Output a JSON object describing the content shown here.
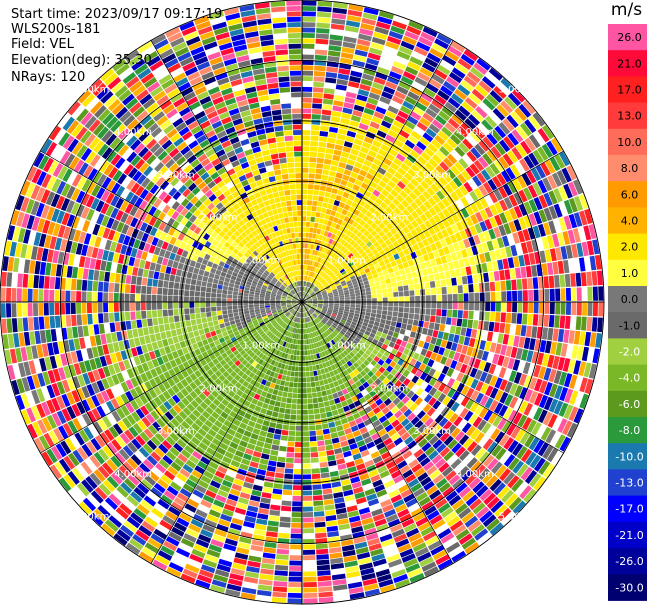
{
  "header": {
    "start_time": "Start time: 2023/09/17 09:17:19",
    "instrument": "WLS200s-181",
    "field": "Field: VEL",
    "elevation": "Elevation(deg): 35.30",
    "nrays": "NRays: 120"
  },
  "colorbar": {
    "unit": "m/s",
    "labels": [
      "26.0",
      "21.0",
      "17.0",
      "13.0",
      "10.0",
      "8.0",
      "6.0",
      "4.0",
      "2.0",
      "1.0",
      "0.0",
      "-1.0",
      "-2.0",
      "-4.0",
      "-6.0",
      "-8.0",
      "-10.0",
      "-13.0",
      "-17.0",
      "-21.0",
      "-26.0",
      "-30.0"
    ],
    "colors": [
      "#ff55a3",
      "#ff0a39",
      "#ff2020",
      "#ff3b3b",
      "#ff6d5a",
      "#ff8c6c",
      "#ff9a00",
      "#ffb300",
      "#ffe800",
      "#ffff40",
      "#787878",
      "#6a6a6a",
      "#a0d040",
      "#7ab828",
      "#5c9a1e",
      "#2a9a3a",
      "#1a7ab0",
      "#2040d0",
      "#0000ff",
      "#0000c8",
      "#00009a",
      "#000070"
    ],
    "neutral_color": "#787878"
  },
  "chart_data": {
    "type": "ppi",
    "field": "VEL",
    "unit": "m/s",
    "elevation_deg": 35.3,
    "nrays": 120,
    "range_rings_km": [
      1.0,
      2.0,
      3.0,
      4.0,
      5.0
    ],
    "max_range_km": 5.0,
    "ring_labels": [
      "1.00km",
      "2.00km",
      "3.00km",
      "4.00km",
      "5.00km"
    ],
    "colorbar_levels": [
      26.0,
      21.0,
      17.0,
      13.0,
      10.0,
      8.0,
      6.0,
      4.0,
      2.0,
      1.0,
      0.0,
      -1.0,
      -2.0,
      -4.0,
      -6.0,
      -8.0,
      -10.0,
      -13.0,
      -17.0,
      -21.0,
      -26.0,
      -30.0
    ],
    "approx_coherent_radius_km": 2.3,
    "regions": [
      {
        "quadrant": "north",
        "value_range": [
          1.0,
          6.0
        ],
        "description": "positive (yellow-orange)"
      },
      {
        "quadrant": "south-east",
        "value_range": [
          -6.0,
          -1.0
        ],
        "description": "negative (green)"
      },
      {
        "quadrant": "center",
        "value_range": [
          -1.0,
          1.0
        ],
        "description": "near zero (gray)"
      }
    ]
  }
}
